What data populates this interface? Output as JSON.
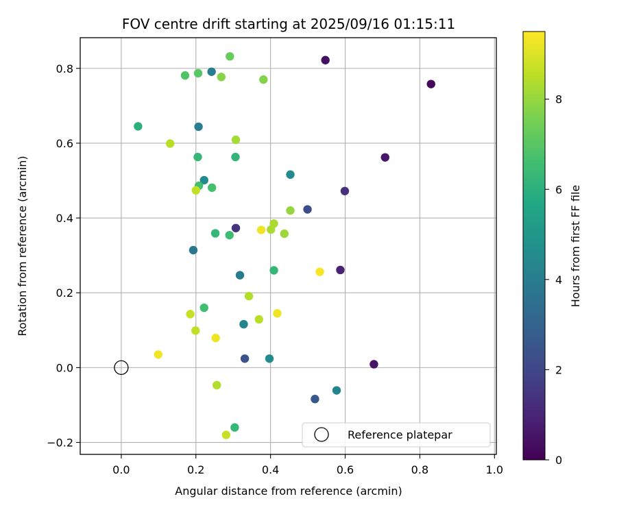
{
  "chart_data": {
    "type": "scatter",
    "title": "FOV centre drift starting at 2025/09/16 01:15:11",
    "xlabel": "Angular distance from reference (arcmin)",
    "ylabel": "Rotation from reference (arcmin)",
    "xlim": [
      -0.11,
      1.005
    ],
    "ylim": [
      -0.232,
      0.882
    ],
    "xticks": [
      0.0,
      0.2,
      0.4,
      0.6,
      0.8,
      1.0
    ],
    "xtick_labels": [
      "0.0",
      "0.2",
      "0.4",
      "0.6",
      "0.8",
      "1.0"
    ],
    "yticks": [
      -0.2,
      0.0,
      0.2,
      0.4,
      0.6,
      0.8
    ],
    "ytick_labels": [
      "−0.2",
      "0.0",
      "0.2",
      "0.4",
      "0.6",
      "0.8"
    ],
    "grid": true,
    "colorbar": {
      "label": "Hours from first FF file",
      "range": [
        0,
        9.5
      ],
      "colormap": "viridis",
      "ticks": [
        0,
        2,
        4,
        6,
        8
      ],
      "tick_labels": [
        "0",
        "2",
        "4",
        "6",
        "8"
      ]
    },
    "reference": {
      "label": "Reference platepar",
      "x": 0.0,
      "y": 0.0
    },
    "legend": {
      "position": "lower-right",
      "entries": [
        "Reference platepar"
      ]
    },
    "points": [
      {
        "x": 0.547,
        "y": 0.822,
        "c": 0.4
      },
      {
        "x": 0.83,
        "y": 0.758,
        "c": 0.2
      },
      {
        "x": 0.707,
        "y": 0.562,
        "c": 0.6
      },
      {
        "x": 0.599,
        "y": 0.472,
        "c": 1.3
      },
      {
        "x": 0.307,
        "y": 0.373,
        "c": 1.4
      },
      {
        "x": 0.587,
        "y": 0.261,
        "c": 0.9
      },
      {
        "x": 0.677,
        "y": 0.009,
        "c": 0.5
      },
      {
        "x": 0.499,
        "y": 0.423,
        "c": 2.2
      },
      {
        "x": 0.331,
        "y": 0.024,
        "c": 2.4
      },
      {
        "x": 0.519,
        "y": -0.084,
        "c": 2.6
      },
      {
        "x": 0.242,
        "y": 0.791,
        "c": 4.0
      },
      {
        "x": 0.207,
        "y": 0.644,
        "c": 4.0
      },
      {
        "x": 0.193,
        "y": 0.314,
        "c": 3.8
      },
      {
        "x": 0.318,
        "y": 0.247,
        "c": 3.9
      },
      {
        "x": 0.328,
        "y": 0.116,
        "c": 4.3
      },
      {
        "x": 0.397,
        "y": 0.024,
        "c": 4.5
      },
      {
        "x": 0.577,
        "y": -0.061,
        "c": 4.3
      },
      {
        "x": 0.453,
        "y": 0.516,
        "c": 4.5
      },
      {
        "x": 0.222,
        "y": 0.501,
        "c": 4.5
      },
      {
        "x": 0.045,
        "y": 0.645,
        "c": 6.0
      },
      {
        "x": 0.205,
        "y": 0.563,
        "c": 6.3
      },
      {
        "x": 0.306,
        "y": 0.563,
        "c": 6.2
      },
      {
        "x": 0.252,
        "y": 0.359,
        "c": 6.3
      },
      {
        "x": 0.29,
        "y": 0.354,
        "c": 6.5
      },
      {
        "x": 0.409,
        "y": 0.26,
        "c": 6.3
      },
      {
        "x": 0.222,
        "y": 0.16,
        "c": 6.6
      },
      {
        "x": 0.304,
        "y": -0.16,
        "c": 6.3
      },
      {
        "x": 0.243,
        "y": 0.481,
        "c": 6.7
      },
      {
        "x": 0.208,
        "y": 0.486,
        "c": 6.6
      },
      {
        "x": 0.171,
        "y": 0.781,
        "c": 6.9
      },
      {
        "x": 0.206,
        "y": 0.787,
        "c": 7.0
      },
      {
        "x": 0.291,
        "y": 0.832,
        "c": 7.3
      },
      {
        "x": 0.268,
        "y": 0.777,
        "c": 7.8
      },
      {
        "x": 0.381,
        "y": 0.77,
        "c": 7.7
      },
      {
        "x": 0.307,
        "y": 0.609,
        "c": 8.2
      },
      {
        "x": 0.131,
        "y": 0.599,
        "c": 8.5
      },
      {
        "x": 0.2,
        "y": 0.474,
        "c": 8.6
      },
      {
        "x": 0.453,
        "y": 0.42,
        "c": 8.0
      },
      {
        "x": 0.409,
        "y": 0.385,
        "c": 8.3
      },
      {
        "x": 0.401,
        "y": 0.369,
        "c": 8.3
      },
      {
        "x": 0.437,
        "y": 0.358,
        "c": 8.1
      },
      {
        "x": 0.342,
        "y": 0.191,
        "c": 8.4
      },
      {
        "x": 0.185,
        "y": 0.143,
        "c": 8.7
      },
      {
        "x": 0.199,
        "y": 0.099,
        "c": 8.6
      },
      {
        "x": 0.369,
        "y": 0.129,
        "c": 8.5
      },
      {
        "x": 0.256,
        "y": -0.047,
        "c": 8.4
      },
      {
        "x": 0.281,
        "y": -0.18,
        "c": 8.7
      },
      {
        "x": 0.375,
        "y": 0.368,
        "c": 9.3
      },
      {
        "x": 0.532,
        "y": 0.256,
        "c": 9.4
      },
      {
        "x": 0.418,
        "y": 0.145,
        "c": 9.3
      },
      {
        "x": 0.253,
        "y": 0.079,
        "c": 9.3
      },
      {
        "x": 0.099,
        "y": 0.035,
        "c": 9.3
      }
    ]
  }
}
